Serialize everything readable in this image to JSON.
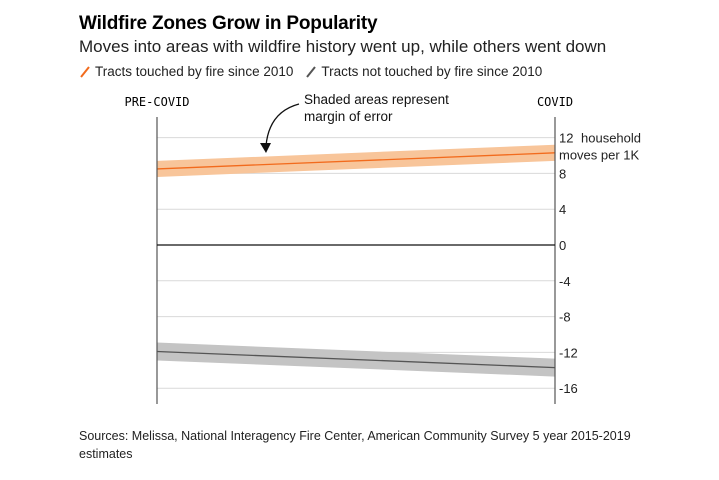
{
  "header": {
    "title": "Wildfire Zones Grow in Popularity",
    "subtitle": "Moves into areas with wildfire history went up, while others went down"
  },
  "source": "Sources: Melissa, National Interagency Fire Center, American Community Survey 5 year 2015-2019 estimates",
  "colors": {
    "fire": "#f26b1d",
    "fire_band": "#f8c59a",
    "nofire": "#555555",
    "nofire_band": "#c4c4c4"
  },
  "chart_data": {
    "type": "line",
    "x": [
      "PRE-COVID",
      "COVID"
    ],
    "ylim": [
      -16,
      12
    ],
    "yticks": [
      12,
      8,
      4,
      0,
      -4,
      -8,
      -12,
      -16
    ],
    "y_unit_label": [
      "household",
      "moves per 1K"
    ],
    "annotation": [
      "Shaded areas represent",
      "margin of error"
    ],
    "series": [
      {
        "name": "Tracts touched by fire since 2010",
        "values": [
          8.5,
          10.3
        ],
        "lower": [
          7.6,
          9.4
        ],
        "upper": [
          9.4,
          11.2
        ]
      },
      {
        "name": "Tracts not touched by fire since 2010",
        "values": [
          -11.9,
          -13.7
        ],
        "lower": [
          -12.9,
          -14.7
        ],
        "upper": [
          -10.9,
          -12.7
        ]
      }
    ]
  }
}
